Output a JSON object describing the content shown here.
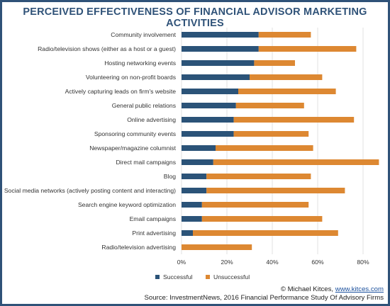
{
  "title": "PERCEIVED EFFECTIVENESS OF FINANCIAL ADVISOR MARKETING ACTIVITIES",
  "colors": {
    "successful": "#2b5378",
    "unsuccessful": "#dd8832",
    "grid": "#d9d9d9",
    "border": "#2f5278"
  },
  "chart_data": {
    "type": "bar",
    "orientation": "horizontal",
    "stacked": true,
    "categories": [
      "Community involvement",
      "Radio/television shows (either as a host or a guest)",
      "Hosting networking events",
      "Volunteering on non-profit boards",
      "Actively capturing leads on firm's website",
      "General public relations",
      "Online advertising",
      "Sponsoring community events",
      "Newspaper/magazine columnist",
      "Direct mail campaigns",
      "Blog",
      "Social media networks (actively posting content and interacting)",
      "Search engine keyword optimization",
      "Email campaigns",
      "Print advertising",
      "Radio/television advertising"
    ],
    "series": [
      {
        "name": "Successful",
        "values": [
          34,
          34,
          32,
          30,
          25,
          24,
          23,
          23,
          15,
          14,
          11,
          11,
          9,
          9,
          5,
          0
        ]
      },
      {
        "name": "Unsuccessful",
        "values": [
          23,
          43,
          18,
          32,
          43,
          30,
          53,
          33,
          43,
          73,
          46,
          61,
          47,
          53,
          64,
          31
        ]
      }
    ],
    "x_ticks": [
      "0%",
      "20%",
      "40%",
      "60%",
      "80%"
    ],
    "xlim": [
      0,
      88
    ],
    "grid": true,
    "legend_position": "bottom"
  },
  "credit": {
    "prefix": "© Michael Kitces, ",
    "link": "www.kitces.com",
    "source": "Source: InvestmentNews, 2016 Financial Performance Study Of Advisory Firms"
  }
}
